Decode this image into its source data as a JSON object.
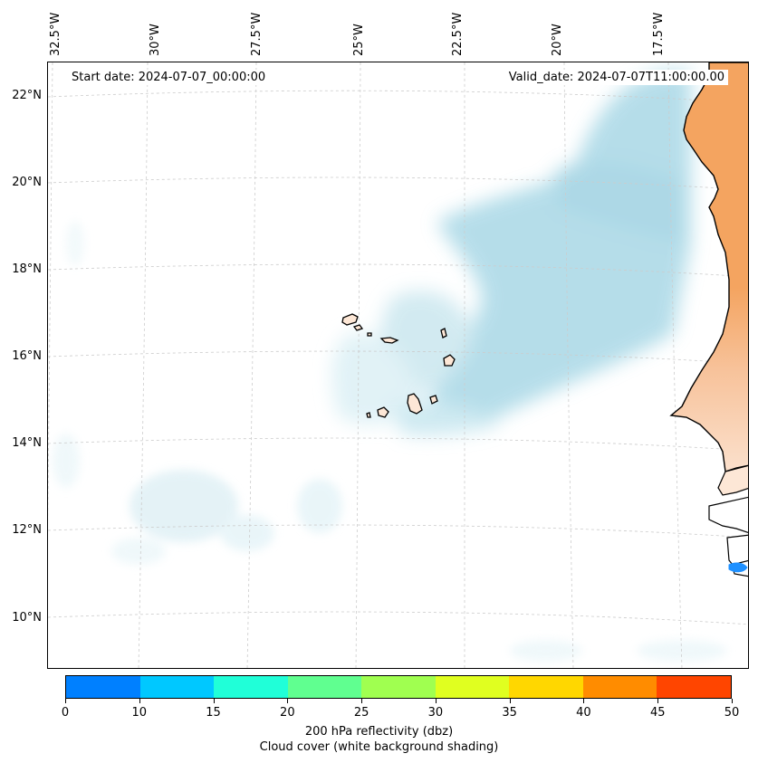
{
  "map": {
    "start_date_label": "Start date: 2024-07-07_00:00:00",
    "valid_date_label": "Valid_date: 2024-07-07T11:00:00.00",
    "longitude_labels": [
      "32.5°W",
      "30°W",
      "27.5°W",
      "25°W",
      "22.5°W",
      "20°W",
      "17.5°W"
    ],
    "latitude_labels": [
      "22°N",
      "20°N",
      "18°N",
      "16°N",
      "14°N",
      "12°N",
      "10°N"
    ],
    "land_color": "#fde7d6",
    "hot_land_color": "#f5a35c",
    "cloud_color": "#a9d8e6",
    "coastline_color": "#000000"
  },
  "colorbar": {
    "ticks": [
      "0",
      "10",
      "15",
      "20",
      "25",
      "30",
      "35",
      "40",
      "45",
      "50"
    ],
    "colors": [
      "#0080ff",
      "#00c8ff",
      "#20ffd8",
      "#60ff90",
      "#a0ff50",
      "#e0ff20",
      "#ffd700",
      "#ff8c00",
      "#ff4500"
    ],
    "label_line1": "200 hPa reflectivity (dbz)",
    "label_line2": "Cloud cover (white background shading)"
  }
}
